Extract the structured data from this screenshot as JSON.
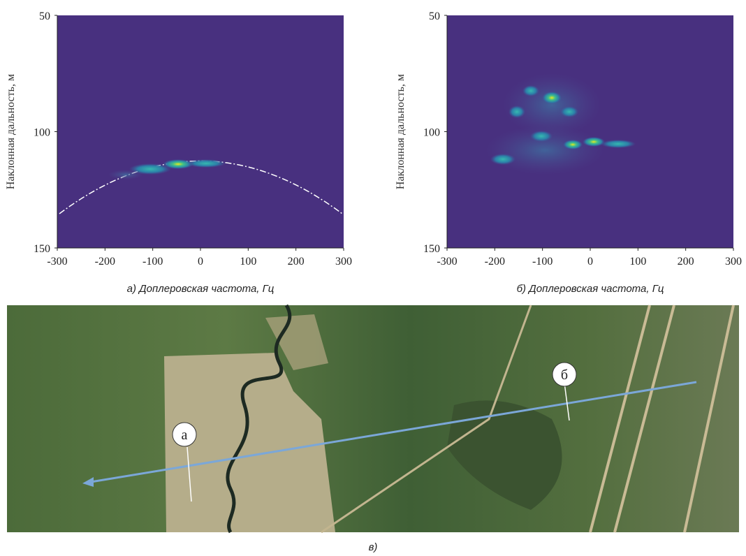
{
  "chart_data": [
    {
      "type": "heatmap",
      "xlabel": "а) Доплеровская частота, Гц",
      "ylabel": "Наклонная дальность, м",
      "xlim": [
        -300,
        300
      ],
      "ylim": [
        50,
        150
      ],
      "y_reversed": true,
      "xticks": [
        -300,
        -200,
        -100,
        0,
        100,
        200,
        300
      ],
      "yticks": [
        50,
        100,
        150
      ],
      "color": "#48307f"
    },
    {
      "type": "heatmap",
      "xlabel": "б) Доплеровская частота, Гц",
      "ylabel": "Наклонная дальность, м",
      "xlim": [
        -300,
        300
      ],
      "ylim": [
        50,
        150
      ],
      "y_reversed": true,
      "xticks": [
        -300,
        -200,
        -100,
        0,
        100,
        200,
        300
      ],
      "yticks": [
        50,
        100,
        150
      ],
      "color": "#48307f"
    }
  ],
  "map": {
    "labels": [
      "а",
      "б"
    ],
    "caption": "в)"
  }
}
